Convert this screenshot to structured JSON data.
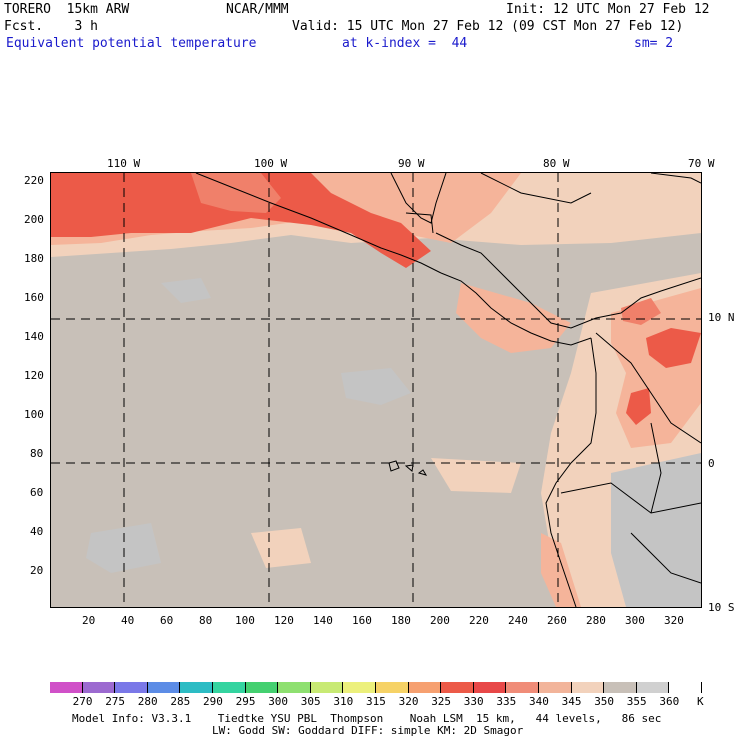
{
  "header": {
    "model": "TORERO  15km ARW",
    "org": "NCAR/MMM",
    "init": "Init: 12 UTC Mon 27 Feb 12",
    "fcst": "Fcst.    3 h",
    "valid": "Valid: 15 UTC Mon 27 Feb 12 (09 CST Mon 27 Feb 12)",
    "field": "Equivalent potential temperature",
    "level": "at k-index =  44",
    "smooth": "sm= 2"
  },
  "map": {
    "top_lon_labels": [
      "110 W",
      "100 W",
      "90 W",
      "80 W",
      "70 W"
    ],
    "right_lat_labels": [
      "10 N",
      "0",
      "10 S"
    ],
    "left_y_ticks": [
      "220",
      "200",
      "180",
      "160",
      "140",
      "120",
      "100",
      "80",
      "60",
      "40",
      "20"
    ],
    "bottom_x_ticks": [
      "20",
      "40",
      "60",
      "80",
      "100",
      "120",
      "140",
      "160",
      "180",
      "200",
      "220",
      "240",
      "260",
      "280",
      "300",
      "320"
    ],
    "colors": {
      "ocean_base": "#c8c0b8",
      "warm_1": "#f2d2bc",
      "warm_2": "#f5b49a",
      "warm_3": "#f0806a",
      "warm_4": "#ec5a48",
      "cool": "#c4c4c4"
    }
  },
  "colorbar": {
    "levels": [
      "270",
      "275",
      "280",
      "285",
      "290",
      "295",
      "300",
      "305",
      "310",
      "315",
      "320",
      "325",
      "330",
      "335",
      "340",
      "345",
      "350",
      "355",
      "360"
    ],
    "unit": "K",
    "colors": [
      "#d050c8",
      "#9c6ad0",
      "#7a78e8",
      "#5c8ce6",
      "#2cbcc4",
      "#34d4a0",
      "#44d070",
      "#8ee070",
      "#c8ea74",
      "#ecf07c",
      "#f6d266",
      "#f6a070",
      "#ec5a48",
      "#e84848",
      "#f08c78",
      "#f2b49a",
      "#f2d2bc",
      "#c8c0b8",
      "#d0d0d0",
      "#ffffff"
    ]
  },
  "footer": {
    "line1": "Model Info: V3.3.1    Tiedtke YSU PBL  Thompson    Noah LSM  15 km,   44 levels,   86 sec",
    "line2": "LW: Godd SW: Goddard DIFF: simple KM: 2D Smagor"
  }
}
